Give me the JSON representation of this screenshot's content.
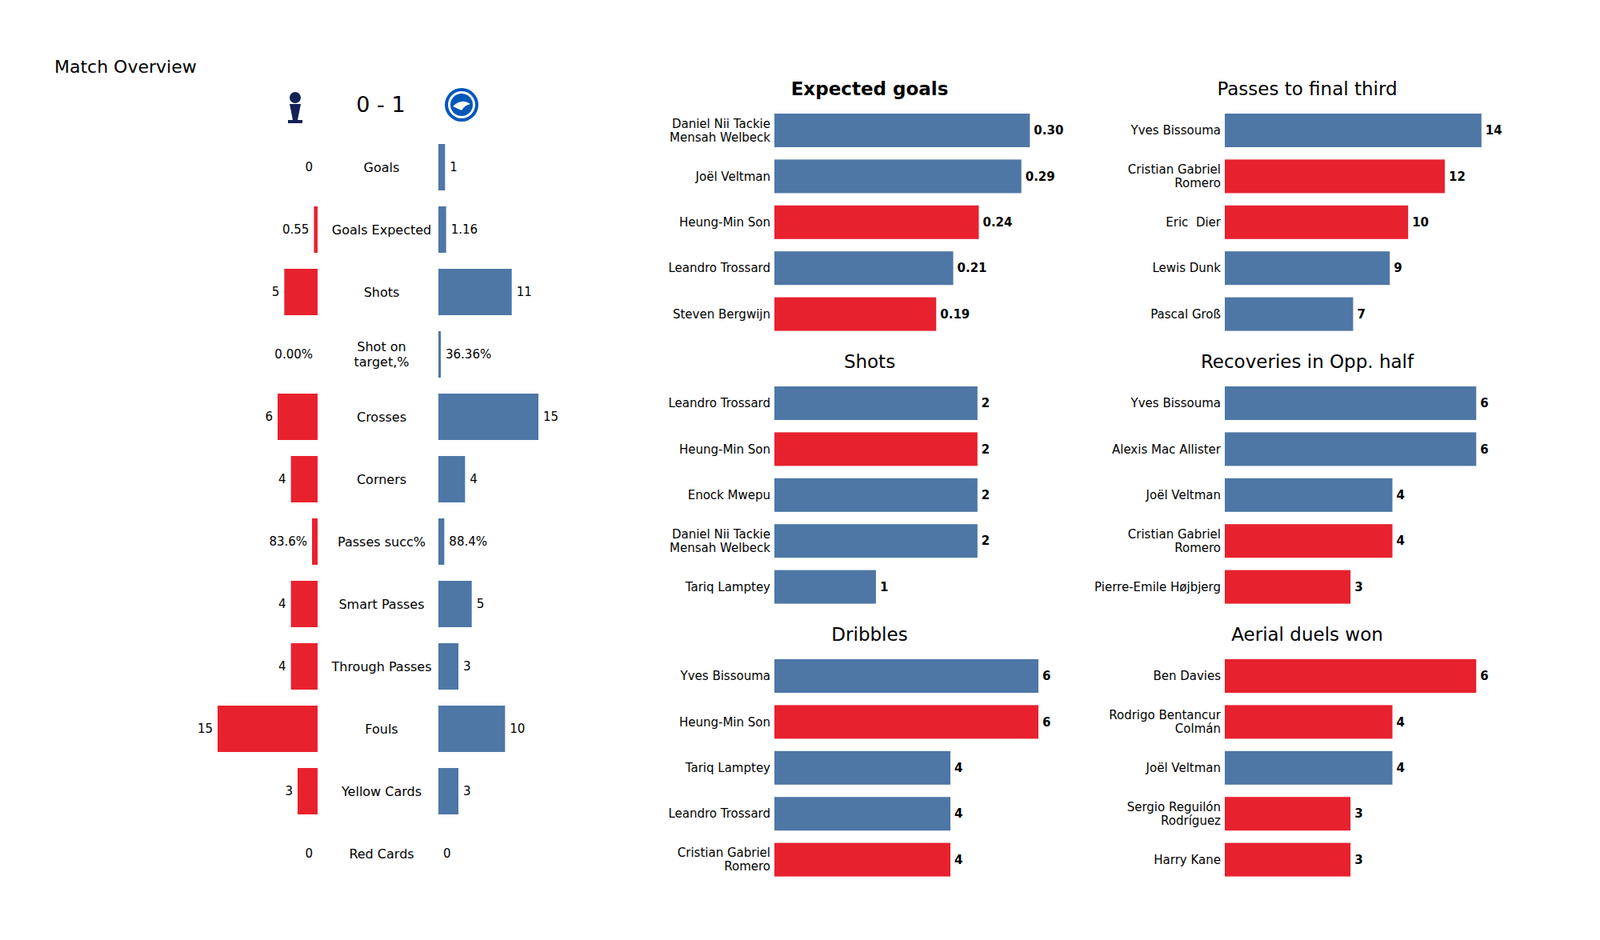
{
  "chart_data": [
    {
      "type": "bar",
      "title": "Match Overview",
      "subtitle": "0 - 1",
      "orientation": "horizontal",
      "categories": [
        "Goals",
        "Goals Expected",
        "Shots",
        "Shot on\ntarget,%",
        "Crosses",
        "Corners",
        "Passes succ%",
        "Smart Passes",
        "Through Passes",
        "Fouls",
        "Yellow Cards",
        "Red Cards"
      ],
      "series": [
        {
          "color": "#e8212e",
          "values": [
            0,
            0.55,
            5,
            0,
            6,
            4,
            0.836,
            4,
            4,
            15,
            3,
            0
          ],
          "value_labels": [
            "0",
            "0.55",
            "5",
            "0.00%",
            "6",
            "4",
            "83.6%",
            "4",
            "4",
            "15",
            "3",
            "0"
          ]
        },
        {
          "color": "#4e77a6",
          "values": [
            1,
            1.16,
            11,
            0.3636,
            15,
            4,
            0.884,
            5,
            3,
            10,
            3,
            0
          ],
          "value_labels": [
            "1",
            "1.16",
            "11",
            "36.36%",
            "15",
            "4",
            "88.4%",
            "5",
            "3",
            "10",
            "3",
            "0"
          ]
        }
      ],
      "xlim": [
        0,
        15
      ],
      "data_labels": true,
      "tick_labels": "y"
    },
    {
      "type": "bar",
      "title": "Expected goals",
      "orientation": "horizontal",
      "categories": [
        "Daniel Nii Tackie\nMensah Welbeck",
        "Joël Veltman",
        "Heung-Min Son",
        "Leandro Trossard",
        "Steven Bergwijn"
      ],
      "values": [
        0.3,
        0.29,
        0.24,
        0.21,
        0.19
      ],
      "value_labels": [
        "0.30",
        "0.29",
        "0.24",
        "0.21",
        "0.19"
      ],
      "colors": [
        "#4e77a6",
        "#4e77a6",
        "#e8212e",
        "#4e77a6",
        "#e8212e"
      ],
      "xlim": [
        0,
        0.31
      ],
      "data_labels": true,
      "tick_labels": "y"
    },
    {
      "type": "bar",
      "title": "Passes to final third",
      "orientation": "horizontal",
      "categories": [
        "Yves Bissouma",
        "Cristian Gabriel\nRomero",
        "Eric  Dier",
        "Lewis Dunk",
        "Pascal Groß"
      ],
      "values": [
        14,
        12,
        10,
        9,
        7
      ],
      "colors": [
        "#4e77a6",
        "#e8212e",
        "#e8212e",
        "#4e77a6",
        "#4e77a6"
      ],
      "xlim": [
        0,
        14.4
      ],
      "data_labels": true,
      "tick_labels": "y"
    },
    {
      "type": "bar",
      "title": "Shots",
      "orientation": "horizontal",
      "categories": [
        "Leandro Trossard",
        "Heung-Min Son",
        "Enock Mwepu",
        "Daniel Nii Tackie\nMensah Welbeck",
        "Tariq Lamptey"
      ],
      "values": [
        2,
        2,
        2,
        2,
        1
      ],
      "colors": [
        "#4e77a6",
        "#e8212e",
        "#4e77a6",
        "#4e77a6",
        "#4e77a6"
      ],
      "xlim": [
        0,
        2.6
      ],
      "data_labels": true,
      "tick_labels": "y"
    },
    {
      "type": "bar",
      "title": "Recoveries in Opp. half",
      "orientation": "horizontal",
      "categories": [
        "Yves Bissouma",
        "Alexis Mac Allister",
        "Joël Veltman",
        "Cristian Gabriel\nRomero",
        "Pierre-Emile Højbjerg"
      ],
      "values": [
        6,
        6,
        4,
        4,
        3
      ],
      "colors": [
        "#4e77a6",
        "#4e77a6",
        "#4e77a6",
        "#e8212e",
        "#e8212e"
      ],
      "xlim": [
        0,
        6.3
      ],
      "data_labels": true,
      "tick_labels": "y"
    },
    {
      "type": "bar",
      "title": "Dribbles",
      "orientation": "horizontal",
      "categories": [
        "Yves Bissouma",
        "Heung-Min Son",
        "Tariq Lamptey",
        "Leandro Trossard",
        "Cristian Gabriel\nRomero"
      ],
      "values": [
        6,
        6,
        4,
        4,
        4
      ],
      "colors": [
        "#4e77a6",
        "#e8212e",
        "#4e77a6",
        "#4e77a6",
        "#e8212e"
      ],
      "xlim": [
        0,
        6
      ],
      "data_labels": true,
      "tick_labels": "y"
    },
    {
      "type": "bar",
      "title": "Aerial duels won",
      "orientation": "horizontal",
      "categories": [
        "Ben Davies",
        "Rodrigo Bentancur\nColmán",
        "Joël Veltman",
        "Sergio Reguilón\nRodríguez",
        "Harry Kane"
      ],
      "values": [
        6,
        4,
        4,
        3,
        3
      ],
      "colors": [
        "#e8212e",
        "#e8212e",
        "#4e77a6",
        "#e8212e",
        "#e8212e"
      ],
      "xlim": [
        0,
        6.3
      ],
      "data_labels": true,
      "tick_labels": "y"
    }
  ]
}
